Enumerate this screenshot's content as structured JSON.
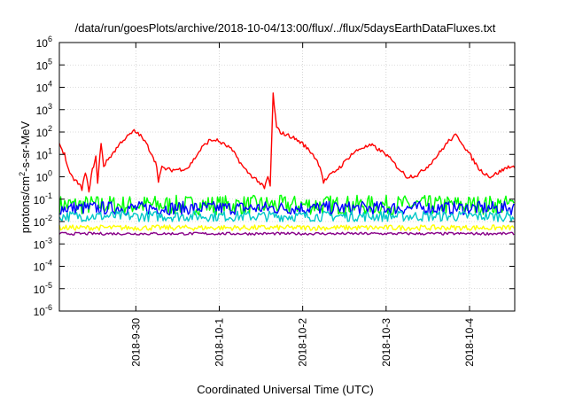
{
  "chart_data": {
    "type": "line",
    "title": "/data/run/goesPlots/archive/2018-10-04/13:00/flux/../flux/5daysEarthDataFluxes.txt",
    "xlabel": "Coordinated Universal Time (UTC)",
    "ylabel": {
      "base": "protons/cm",
      "sup": "2",
      "rest": "-s-sr-MeV"
    },
    "y_scale": "log",
    "ylim": [
      "1e-6",
      "1e6"
    ],
    "y_tick_labels": [
      {
        "value": 1e-06,
        "base": "10",
        "exp": "-6"
      },
      {
        "value": 1e-05,
        "base": "10",
        "exp": "-5"
      },
      {
        "value": 0.0001,
        "base": "10",
        "exp": "-4"
      },
      {
        "value": 0.001,
        "base": "10",
        "exp": "-3"
      },
      {
        "value": 0.01,
        "base": "10",
        "exp": "-2"
      },
      {
        "value": 0.1,
        "base": "10",
        "exp": "-1"
      },
      {
        "value": 1,
        "base": "10",
        "exp": "0"
      },
      {
        "value": 10,
        "base": "10",
        "exp": "1"
      },
      {
        "value": 100,
        "base": "10",
        "exp": "2"
      },
      {
        "value": 1000,
        "base": "10",
        "exp": "3"
      },
      {
        "value": 10000,
        "base": "10",
        "exp": "4"
      },
      {
        "value": 100000,
        "base": "10",
        "exp": "5"
      },
      {
        "value": 1000000,
        "base": "10",
        "exp": "6"
      }
    ],
    "x_domain_days": [
      "2018-09-29 02:00",
      "2018-10-04 13:00"
    ],
    "x_tick_labels": [
      {
        "t": "2018-09-30 00:00",
        "label": "2018-9-30"
      },
      {
        "t": "2018-10-01 00:00",
        "label": "2018-10-1"
      },
      {
        "t": "2018-10-02 00:00",
        "label": "2018-10-2"
      },
      {
        "t": "2018-10-03 00:00",
        "label": "2018-10-3"
      },
      {
        "t": "2018-10-04 00:00",
        "label": "2018-10-4"
      }
    ],
    "grid": true,
    "legend": "none",
    "series": [
      {
        "color": "#ff0000",
        "style": "line",
        "points": [
          [
            "2018-09-29 02:00",
            30
          ],
          [
            "2018-09-29 03:30",
            10
          ],
          [
            "2018-09-29 05:00",
            1.2
          ],
          [
            "2018-09-29 07:00",
            0.6
          ],
          [
            "2018-09-29 08:30",
            0.3
          ],
          [
            "2018-09-29 09:30",
            1.5
          ],
          [
            "2018-09-29 10:30",
            0.25
          ],
          [
            "2018-09-29 11:30",
            2
          ],
          [
            "2018-09-29 12:30",
            8
          ],
          [
            "2018-09-29 13:00",
            0.5
          ],
          [
            "2018-09-29 14:00",
            35
          ],
          [
            "2018-09-29 14:45",
            3
          ],
          [
            "2018-09-29 16:00",
            6
          ],
          [
            "2018-09-29 18:00",
            15
          ],
          [
            "2018-09-29 20:00",
            40
          ],
          [
            "2018-09-29 22:00",
            70
          ],
          [
            "2018-09-29 23:30",
            110
          ],
          [
            "2018-09-30 01:00",
            80
          ],
          [
            "2018-09-30 03:00",
            30
          ],
          [
            "2018-09-30 05:00",
            8
          ],
          [
            "2018-09-30 06:00",
            3
          ],
          [
            "2018-09-30 06:30",
            0.7
          ],
          [
            "2018-09-30 07:30",
            2.5
          ],
          [
            "2018-09-30 10:00",
            2
          ],
          [
            "2018-09-30 13:00",
            2.2
          ],
          [
            "2018-09-30 15:00",
            2.5
          ],
          [
            "2018-09-30 17:00",
            7
          ],
          [
            "2018-09-30 19:00",
            20
          ],
          [
            "2018-09-30 21:00",
            40
          ],
          [
            "2018-09-30 23:00",
            45
          ],
          [
            "2018-10-01 01:00",
            30
          ],
          [
            "2018-10-01 03:00",
            20
          ],
          [
            "2018-10-01 05:00",
            8
          ],
          [
            "2018-10-01 07:00",
            2.5
          ],
          [
            "2018-10-01 09:00",
            1.2
          ],
          [
            "2018-10-01 11:00",
            0.7
          ],
          [
            "2018-10-01 13:00",
            0.3
          ],
          [
            "2018-10-01 14:00",
            1
          ],
          [
            "2018-10-01 14:40",
            0.4
          ],
          [
            "2018-10-01 15:30",
            5000
          ],
          [
            "2018-10-01 16:30",
            150
          ],
          [
            "2018-10-01 18:00",
            90
          ],
          [
            "2018-10-01 21:00",
            60
          ],
          [
            "2018-10-02 00:00",
            30
          ],
          [
            "2018-10-02 03:00",
            10
          ],
          [
            "2018-10-02 05:00",
            3
          ],
          [
            "2018-10-02 06:00",
            0.6
          ],
          [
            "2018-10-02 08:00",
            1.2
          ],
          [
            "2018-10-02 11:00",
            3
          ],
          [
            "2018-10-02 14:00",
            10
          ],
          [
            "2018-10-02 17:00",
            20
          ],
          [
            "2018-10-02 20:00",
            25
          ],
          [
            "2018-10-03 00:00",
            10
          ],
          [
            "2018-10-03 03:00",
            3
          ],
          [
            "2018-10-03 06:00",
            1
          ],
          [
            "2018-10-03 09:00",
            1.2
          ],
          [
            "2018-10-03 12:00",
            3
          ],
          [
            "2018-10-03 15:00",
            10
          ],
          [
            "2018-10-03 18:00",
            40
          ],
          [
            "2018-10-03 20:00",
            70
          ],
          [
            "2018-10-03 21:30",
            40
          ],
          [
            "2018-10-04 00:00",
            10
          ],
          [
            "2018-10-04 03:00",
            2
          ],
          [
            "2018-10-04 06:00",
            1
          ],
          [
            "2018-10-04 09:00",
            1.8
          ],
          [
            "2018-10-04 11:30",
            3
          ],
          [
            "2018-10-04 13:00",
            2.5
          ]
        ]
      },
      {
        "color": "#00ff00",
        "style": "band",
        "lo": 0.02,
        "hi": 0.15
      },
      {
        "color": "#0000ff",
        "style": "band",
        "lo": 0.02,
        "hi": 0.08
      },
      {
        "color": "#00c8c8",
        "style": "band",
        "lo": 0.01,
        "hi": 0.03
      },
      {
        "color": "#ffff00",
        "style": "band",
        "lo": 0.004,
        "hi": 0.007
      },
      {
        "color": "#880088",
        "style": "band",
        "lo": 0.0025,
        "hi": 0.0033
      }
    ]
  }
}
